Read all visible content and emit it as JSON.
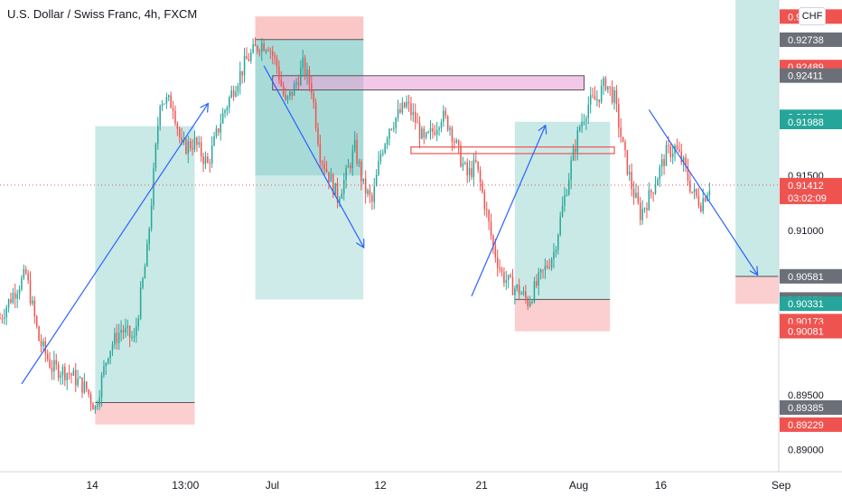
{
  "header": {
    "title": "U.S. Dollar / Swiss Franc, 4h, FXCM",
    "currency": "CHF"
  },
  "colors": {
    "up": "#26a69a",
    "down": "#ef5350",
    "arrow": "#2962ff",
    "profit_zone": "#26a69a",
    "loss_zone": "#f7a8a8",
    "supply_zone": "#e9a3d9",
    "price_line": "#ef5350"
  },
  "chart_data": {
    "type": "candlestick",
    "symbol": "USDCHF",
    "timeframe": "4h",
    "ylim": [
      0.888,
      0.931
    ],
    "y_ticks": [
      "0.89000",
      "0.89500",
      "0.91000",
      "0.91500",
      "0.92000"
    ],
    "x_ticks": [
      "14",
      "13:00",
      "Jul",
      "12",
      "21",
      "Aug",
      "16",
      "Sep"
    ],
    "current_price": "0.91412",
    "countdown": "03:02:09",
    "price_labels": [
      {
        "value": "0.92949",
        "color": "red"
      },
      {
        "value": "0.92738",
        "color": "gray"
      },
      {
        "value": "0.92489",
        "color": "red"
      },
      {
        "value": "0.92411",
        "color": "gray"
      },
      {
        "value": "0.92035",
        "color": "green"
      },
      {
        "value": "0.91988",
        "color": "green"
      },
      {
        "value": "0.91988",
        "color": "green"
      },
      {
        "value": "0.91412",
        "color": "red"
      },
      {
        "value": "0.90581",
        "color": "gray"
      },
      {
        "value": "0.90370",
        "color": "gray"
      },
      {
        "value": "0.90331",
        "color": "green"
      },
      {
        "value": "0.90173",
        "color": "red"
      },
      {
        "value": "0.90081",
        "color": "red"
      },
      {
        "value": "0.89385",
        "color": "gray"
      },
      {
        "value": "0.89229",
        "color": "red"
      }
    ],
    "price_path": [
      {
        "x": 0,
        "y": 0.902
      },
      {
        "x": 3,
        "y": 0.9042
      },
      {
        "x": 6,
        "y": 0.906
      },
      {
        "x": 9,
        "y": 0.9
      },
      {
        "x": 12,
        "y": 0.8975
      },
      {
        "x": 16,
        "y": 0.897
      },
      {
        "x": 20,
        "y": 0.8955
      },
      {
        "x": 22,
        "y": 0.8938
      },
      {
        "x": 25,
        "y": 0.899
      },
      {
        "x": 28,
        "y": 0.901
      },
      {
        "x": 31,
        "y": 0.9
      },
      {
        "x": 34,
        "y": 0.908
      },
      {
        "x": 37,
        "y": 0.922
      },
      {
        "x": 40,
        "y": 0.9215
      },
      {
        "x": 42,
        "y": 0.9175
      },
      {
        "x": 45,
        "y": 0.918
      },
      {
        "x": 48,
        "y": 0.916
      },
      {
        "x": 51,
        "y": 0.92
      },
      {
        "x": 54,
        "y": 0.923
      },
      {
        "x": 57,
        "y": 0.9255
      },
      {
        "x": 60,
        "y": 0.927
      },
      {
        "x": 62,
        "y": 0.927
      },
      {
        "x": 64,
        "y": 0.925
      },
      {
        "x": 66,
        "y": 0.9215
      },
      {
        "x": 68,
        "y": 0.923
      },
      {
        "x": 70,
        "y": 0.925
      },
      {
        "x": 72,
        "y": 0.923
      },
      {
        "x": 74,
        "y": 0.917
      },
      {
        "x": 76,
        "y": 0.915
      },
      {
        "x": 78,
        "y": 0.913
      },
      {
        "x": 80,
        "y": 0.915
      },
      {
        "x": 82,
        "y": 0.9175
      },
      {
        "x": 84,
        "y": 0.914
      },
      {
        "x": 86,
        "y": 0.9125
      },
      {
        "x": 88,
        "y": 0.917
      },
      {
        "x": 90,
        "y": 0.9195
      },
      {
        "x": 92,
        "y": 0.9205
      },
      {
        "x": 94,
        "y": 0.9215
      },
      {
        "x": 96,
        "y": 0.92
      },
      {
        "x": 98,
        "y": 0.918
      },
      {
        "x": 100,
        "y": 0.919
      },
      {
        "x": 102,
        "y": 0.9205
      },
      {
        "x": 104,
        "y": 0.9195
      },
      {
        "x": 106,
        "y": 0.917
      },
      {
        "x": 108,
        "y": 0.915
      },
      {
        "x": 110,
        "y": 0.916
      },
      {
        "x": 112,
        "y": 0.9125
      },
      {
        "x": 114,
        "y": 0.9085
      },
      {
        "x": 116,
        "y": 0.906
      },
      {
        "x": 118,
        "y": 0.905
      },
      {
        "x": 120,
        "y": 0.9045
      },
      {
        "x": 122,
        "y": 0.9035
      },
      {
        "x": 124,
        "y": 0.905
      },
      {
        "x": 126,
        "y": 0.9065
      },
      {
        "x": 128,
        "y": 0.908
      },
      {
        "x": 130,
        "y": 0.912
      },
      {
        "x": 132,
        "y": 0.916
      },
      {
        "x": 134,
        "y": 0.9195
      },
      {
        "x": 136,
        "y": 0.9215
      },
      {
        "x": 138,
        "y": 0.922
      },
      {
        "x": 140,
        "y": 0.9235
      },
      {
        "x": 142,
        "y": 0.922
      },
      {
        "x": 144,
        "y": 0.9175
      },
      {
        "x": 146,
        "y": 0.914
      },
      {
        "x": 148,
        "y": 0.9115
      },
      {
        "x": 150,
        "y": 0.913
      },
      {
        "x": 152,
        "y": 0.915
      },
      {
        "x": 154,
        "y": 0.917
      },
      {
        "x": 156,
        "y": 0.9175
      },
      {
        "x": 158,
        "y": 0.916
      },
      {
        "x": 160,
        "y": 0.9135
      },
      {
        "x": 162,
        "y": 0.9125
      },
      {
        "x": 164,
        "y": 0.9141
      }
    ],
    "annotations": {
      "rr_boxes": [
        {
          "x0": 22,
          "x1": 45,
          "entry": 0.8943,
          "target": 0.9195,
          "stop": 0.8923,
          "direction": "long"
        },
        {
          "x0": 59,
          "x1": 84,
          "entry": 0.915,
          "target": 0.9274,
          "stop": 0.9037,
          "direction": "short_profit_below",
          "stop_top": 0.9295
        },
        {
          "x0": 119,
          "x1": 141,
          "entry": 0.9037,
          "target": 0.9199,
          "stop": 0.9008,
          "direction": "long"
        },
        {
          "x0": 170,
          "x1": 180,
          "entry": 0.9058,
          "target": 0.931,
          "stop": 0.9033,
          "direction": "long"
        }
      ],
      "zones": [
        {
          "x0": 63,
          "x1": 135,
          "top": 0.9241,
          "bottom": 0.9228,
          "type": "supply"
        },
        {
          "x0": 95,
          "x1": 142,
          "top": 0.9176,
          "bottom": 0.917,
          "type": "line-zone"
        }
      ],
      "arrows": [
        {
          "x0": 5,
          "y0": 0.896,
          "x1": 48,
          "y1": 0.9215
        },
        {
          "x0": 61,
          "y0": 0.925,
          "x1": 84,
          "y1": 0.9085
        },
        {
          "x0": 109,
          "y0": 0.904,
          "x1": 126,
          "y1": 0.9195
        },
        {
          "x0": 150,
          "y0": 0.921,
          "x1": 175,
          "y1": 0.906
        }
      ]
    }
  }
}
